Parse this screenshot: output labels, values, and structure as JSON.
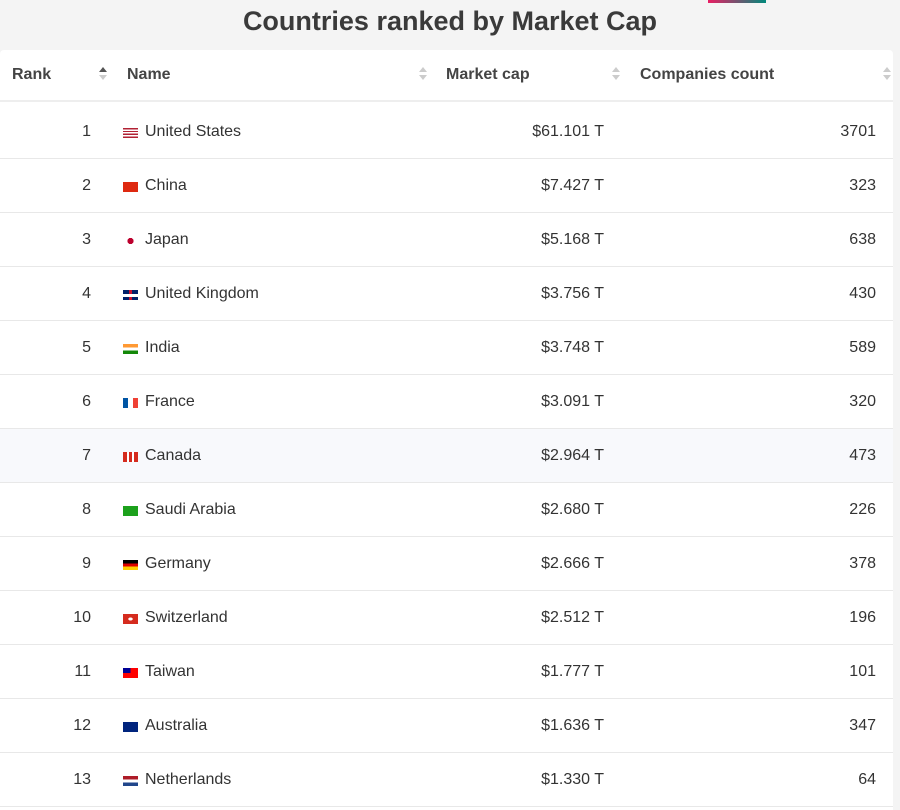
{
  "title": "Countries ranked by Market Cap",
  "columns": [
    "Rank",
    "Name",
    "Market cap",
    "Companies count"
  ],
  "sort": {
    "column": "Rank",
    "direction": "ascending"
  },
  "rows": [
    {
      "rank": "1",
      "flag": "us-flag",
      "name": "United States",
      "cap": "$61.101 T",
      "count": "3701"
    },
    {
      "rank": "2",
      "flag": "cn-flag",
      "name": "China",
      "cap": "$7.427 T",
      "count": "323"
    },
    {
      "rank": "3",
      "flag": "jp-flag",
      "name": "Japan",
      "cap": "$5.168 T",
      "count": "638"
    },
    {
      "rank": "4",
      "flag": "gb-flag",
      "name": "United Kingdom",
      "cap": "$3.756 T",
      "count": "430"
    },
    {
      "rank": "5",
      "flag": "in-flag",
      "name": "India",
      "cap": "$3.748 T",
      "count": "589"
    },
    {
      "rank": "6",
      "flag": "fr-flag",
      "name": "France",
      "cap": "$3.091 T",
      "count": "320"
    },
    {
      "rank": "7",
      "flag": "ca-flag",
      "name": "Canada",
      "cap": "$2.964 T",
      "count": "473"
    },
    {
      "rank": "8",
      "flag": "sa-flag",
      "name": "Saudi Arabia",
      "cap": "$2.680 T",
      "count": "226"
    },
    {
      "rank": "9",
      "flag": "de-flag",
      "name": "Germany",
      "cap": "$2.666 T",
      "count": "378"
    },
    {
      "rank": "10",
      "flag": "ch-flag",
      "name": "Switzerland",
      "cap": "$2.512 T",
      "count": "196"
    },
    {
      "rank": "11",
      "flag": "tw-flag",
      "name": "Taiwan",
      "cap": "$1.777 T",
      "count": "101"
    },
    {
      "rank": "12",
      "flag": "au-flag",
      "name": "Australia",
      "cap": "$1.636 T",
      "count": "347"
    },
    {
      "rank": "13",
      "flag": "nl-flag",
      "name": "Netherlands",
      "cap": "$1.330 T",
      "count": "64"
    }
  ]
}
